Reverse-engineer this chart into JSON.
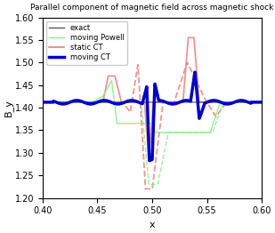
{
  "title": "Parallel component of magnetic field across magnetic shock",
  "xlabel": "x",
  "ylabel": "B_y",
  "xlim": [
    0.4,
    0.6
  ],
  "ylim": [
    1.2,
    1.6
  ],
  "yticks": [
    1.2,
    1.25,
    1.3,
    1.35,
    1.4,
    1.45,
    1.5,
    1.55,
    1.6
  ],
  "xticks": [
    0.4,
    0.45,
    0.5,
    0.55,
    0.6
  ],
  "exact_color": "#555555",
  "powell_color": "#88ee88",
  "static_ct_color": "#ee8888",
  "moving_ct_color": "#0000cc",
  "exact_lw": 1.0,
  "powell_lw": 1.0,
  "static_ct_lw": 1.3,
  "moving_ct_lw": 2.5,
  "baseline": 1.412
}
